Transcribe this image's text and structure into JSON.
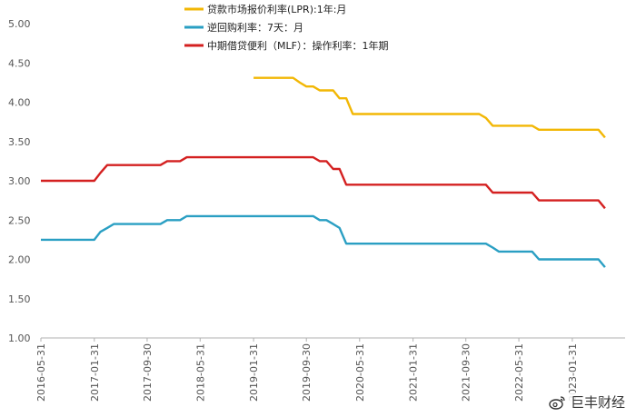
{
  "chart_data": {
    "type": "line",
    "ylim": [
      1.0,
      5.0
    ],
    "y_ticks": [
      "5.00",
      "4.50",
      "4.00",
      "3.50",
      "3.00",
      "2.50",
      "2.00",
      "1.50",
      "1.00"
    ],
    "x_tick_labels": [
      "2016-05-31",
      "2017-01-31",
      "2017-09-30",
      "2018-05-31",
      "2019-01-31",
      "2019-09-30",
      "2020-05-31",
      "2021-01-31",
      "2021-09-30",
      "2022-05-31",
      "2023-01-31"
    ],
    "x_range": [
      "2016-05-31",
      "2023-09-30"
    ],
    "grid": false,
    "legend_position": "top-center",
    "series": [
      {
        "name": "贷款市场报价利率(LPR):1年:月",
        "color": "#F2B705",
        "points": [
          [
            "2019-01-31",
            4.31
          ],
          [
            "2019-05-31",
            4.31
          ],
          [
            "2019-06-30",
            4.31
          ],
          [
            "2019-07-31",
            4.31
          ],
          [
            "2019-08-31",
            4.25
          ],
          [
            "2019-09-30",
            4.2
          ],
          [
            "2019-10-31",
            4.2
          ],
          [
            "2019-11-30",
            4.15
          ],
          [
            "2019-12-31",
            4.15
          ],
          [
            "2020-01-31",
            4.15
          ],
          [
            "2020-02-29",
            4.05
          ],
          [
            "2020-03-31",
            4.05
          ],
          [
            "2020-04-30",
            3.85
          ],
          [
            "2020-05-31",
            3.85
          ],
          [
            "2021-01-31",
            3.85
          ],
          [
            "2021-09-30",
            3.85
          ],
          [
            "2021-11-30",
            3.85
          ],
          [
            "2021-12-31",
            3.8
          ],
          [
            "2022-01-31",
            3.7
          ],
          [
            "2022-07-31",
            3.7
          ],
          [
            "2022-08-31",
            3.65
          ],
          [
            "2023-05-31",
            3.65
          ],
          [
            "2023-06-30",
            3.55
          ]
        ]
      },
      {
        "name": "逆回购利率：7天：月",
        "color": "#2A9FC3",
        "points": [
          [
            "2016-05-31",
            2.25
          ],
          [
            "2016-12-31",
            2.25
          ],
          [
            "2017-01-31",
            2.25
          ],
          [
            "2017-02-28",
            2.35
          ],
          [
            "2017-03-31",
            2.4
          ],
          [
            "2017-04-30",
            2.45
          ],
          [
            "2017-11-30",
            2.45
          ],
          [
            "2017-12-31",
            2.5
          ],
          [
            "2018-02-28",
            2.5
          ],
          [
            "2018-03-31",
            2.55
          ],
          [
            "2019-09-30",
            2.55
          ],
          [
            "2019-10-31",
            2.55
          ],
          [
            "2019-11-30",
            2.5
          ],
          [
            "2019-12-31",
            2.5
          ],
          [
            "2020-01-31",
            2.45
          ],
          [
            "2020-02-29",
            2.4
          ],
          [
            "2020-03-31",
            2.2
          ],
          [
            "2021-01-31",
            2.2
          ],
          [
            "2021-12-31",
            2.2
          ],
          [
            "2022-01-31",
            2.15
          ],
          [
            "2022-02-28",
            2.1
          ],
          [
            "2022-07-31",
            2.1
          ],
          [
            "2022-08-31",
            2.0
          ],
          [
            "2023-05-31",
            2.0
          ],
          [
            "2023-06-30",
            1.9
          ]
        ]
      },
      {
        "name": "中期借贷便利（MLF）：操作利率：1年期",
        "color": "#D42020",
        "points": [
          [
            "2016-05-31",
            3.0
          ],
          [
            "2016-12-31",
            3.0
          ],
          [
            "2017-01-31",
            3.0
          ],
          [
            "2017-02-28",
            3.1
          ],
          [
            "2017-03-31",
            3.2
          ],
          [
            "2017-11-30",
            3.2
          ],
          [
            "2017-12-31",
            3.25
          ],
          [
            "2018-02-28",
            3.25
          ],
          [
            "2018-03-31",
            3.3
          ],
          [
            "2019-09-30",
            3.3
          ],
          [
            "2019-10-31",
            3.3
          ],
          [
            "2019-11-30",
            3.25
          ],
          [
            "2019-12-31",
            3.25
          ],
          [
            "2020-01-31",
            3.15
          ],
          [
            "2020-02-29",
            3.15
          ],
          [
            "2020-03-31",
            2.95
          ],
          [
            "2020-04-30",
            2.95
          ],
          [
            "2021-01-31",
            2.95
          ],
          [
            "2021-12-31",
            2.95
          ],
          [
            "2022-01-31",
            2.85
          ],
          [
            "2022-07-31",
            2.85
          ],
          [
            "2022-08-31",
            2.75
          ],
          [
            "2023-05-31",
            2.75
          ],
          [
            "2023-06-30",
            2.65
          ]
        ]
      }
    ]
  },
  "watermark": {
    "text": "巨丰财经",
    "icon": "weibo-icon"
  }
}
